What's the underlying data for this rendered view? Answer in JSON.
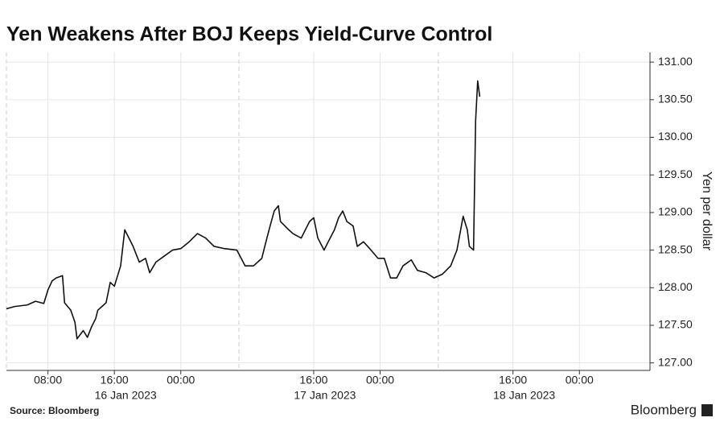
{
  "chart_data": {
    "type": "line",
    "title": "Yen Weakens After BOJ Keeps Yield-Curve Control",
    "y_label": "Yen per dollar",
    "source": "Source: Bloomberg",
    "brand": "Bloomberg",
    "color": "#111111",
    "grid": true,
    "y_axis_side": "right",
    "x": [
      "2023-01-16T03:00",
      "2023-01-16T04:00",
      "2023-01-16T05:30",
      "2023-01-16T06:30",
      "2023-01-16T07:30",
      "2023-01-16T08:00",
      "2023-01-16T08:30",
      "2023-01-16T09:00",
      "2023-01-16T09:45",
      "2023-01-16T10:00",
      "2023-01-16T10:45",
      "2023-01-16T11:15",
      "2023-01-16T11:30",
      "2023-01-16T12:15",
      "2023-01-16T12:45",
      "2023-01-16T13:15",
      "2023-01-16T13:45",
      "2023-01-16T14:00",
      "2023-01-16T14:30",
      "2023-01-16T15:00",
      "2023-01-16T15:30",
      "2023-01-16T16:00",
      "2023-01-16T16:45",
      "2023-01-16T17:15",
      "2023-01-16T17:45",
      "2023-01-16T18:15",
      "2023-01-16T19:00",
      "2023-01-16T19:45",
      "2023-01-16T20:15",
      "2023-01-16T21:00",
      "2023-01-16T22:00",
      "2023-01-16T23:00",
      "2023-01-17T00:00",
      "2023-01-17T01:00",
      "2023-01-17T02:00",
      "2023-01-17T03:00",
      "2023-01-17T04:00",
      "2023-01-17T05:15",
      "2023-01-17T06:45",
      "2023-01-17T07:45",
      "2023-01-17T08:45",
      "2023-01-17T09:45",
      "2023-01-17T10:15",
      "2023-01-17T10:45",
      "2023-01-17T11:15",
      "2023-01-17T11:45",
      "2023-01-17T12:00",
      "2023-01-17T13:00",
      "2023-01-17T13:30",
      "2023-01-17T14:30",
      "2023-01-17T15:30",
      "2023-01-17T16:00",
      "2023-01-17T16:30",
      "2023-01-17T17:15",
      "2023-01-17T17:45",
      "2023-01-17T18:30",
      "2023-01-17T19:00",
      "2023-01-17T19:30",
      "2023-01-17T20:00",
      "2023-01-17T20:45",
      "2023-01-17T21:15",
      "2023-01-17T22:00",
      "2023-01-17T22:45",
      "2023-01-17T23:45",
      "2023-01-18T00:30",
      "2023-01-18T01:15",
      "2023-01-18T02:00",
      "2023-01-18T02:45",
      "2023-01-18T03:45",
      "2023-01-18T04:30",
      "2023-01-18T05:30",
      "2023-01-18T06:30",
      "2023-01-18T07:30",
      "2023-01-18T08:30",
      "2023-01-18T09:15",
      "2023-01-18T10:00",
      "2023-01-18T10:30",
      "2023-01-18T10:45",
      "2023-01-18T11:15",
      "2023-01-18T11:30",
      "2023-01-18T11:45",
      "2023-01-18T12:00"
    ],
    "values": [
      127.72,
      127.75,
      127.77,
      127.82,
      127.79,
      127.97,
      128.09,
      128.13,
      128.16,
      127.8,
      127.7,
      127.54,
      127.32,
      127.43,
      127.34,
      127.48,
      127.59,
      127.7,
      127.75,
      127.8,
      128.07,
      128.02,
      128.29,
      128.77,
      128.66,
      128.55,
      128.34,
      128.39,
      128.2,
      128.34,
      128.42,
      128.5,
      128.52,
      128.61,
      128.72,
      128.66,
      128.55,
      128.52,
      128.5,
      128.29,
      128.29,
      128.39,
      128.61,
      128.82,
      129.02,
      129.09,
      128.88,
      128.77,
      128.72,
      128.66,
      128.88,
      128.93,
      128.66,
      128.5,
      128.61,
      128.77,
      128.93,
      129.02,
      128.88,
      128.82,
      128.55,
      128.61,
      128.52,
      128.39,
      128.39,
      128.13,
      128.13,
      128.29,
      128.37,
      128.23,
      128.2,
      128.13,
      128.18,
      128.29,
      128.5,
      128.95,
      128.77,
      128.55,
      128.5,
      130.22,
      130.75,
      130.54
    ],
    "xlim": [
      "2023-01-16T03:00",
      "2023-01-19T08:30"
    ],
    "ylim": [
      126.9,
      131.13
    ],
    "yticks": [
      {
        "value": 127,
        "label": "127.00"
      },
      {
        "value": 127.5,
        "label": "127.50"
      },
      {
        "value": 128,
        "label": "128.00"
      },
      {
        "value": 128.5,
        "label": "128.50"
      },
      {
        "value": 129,
        "label": "129.00"
      },
      {
        "value": 129.5,
        "label": "129.50"
      },
      {
        "value": 130,
        "label": "130.00"
      },
      {
        "value": 130.5,
        "label": "130.50"
      },
      {
        "value": 131,
        "label": "131.00"
      }
    ],
    "xticks": [
      {
        "value": "2023-01-16T08:00",
        "label": "08:00"
      },
      {
        "value": "2023-01-16T16:00",
        "label": "16:00"
      },
      {
        "value": "2023-01-17T00:00",
        "label": "00:00"
      },
      {
        "value": "2023-01-17T16:00",
        "label": "16:00"
      },
      {
        "value": "2023-01-18T00:00",
        "label": "00:00"
      },
      {
        "value": "2023-01-18T16:00",
        "label": "16:00"
      },
      {
        "value": "2023-01-19T00:00",
        "label": "00:00"
      }
    ],
    "x_date_labels": [
      {
        "value": "2023-01-16T16:00",
        "label": "16 Jan 2023"
      },
      {
        "value": "2023-01-17T16:00",
        "label": "17 Jan 2023"
      },
      {
        "value": "2023-01-18T16:00",
        "label": "18 Jan 2023"
      }
    ],
    "session_breaks": [
      "2023-01-17T07:00",
      "2023-01-18T07:00"
    ]
  }
}
